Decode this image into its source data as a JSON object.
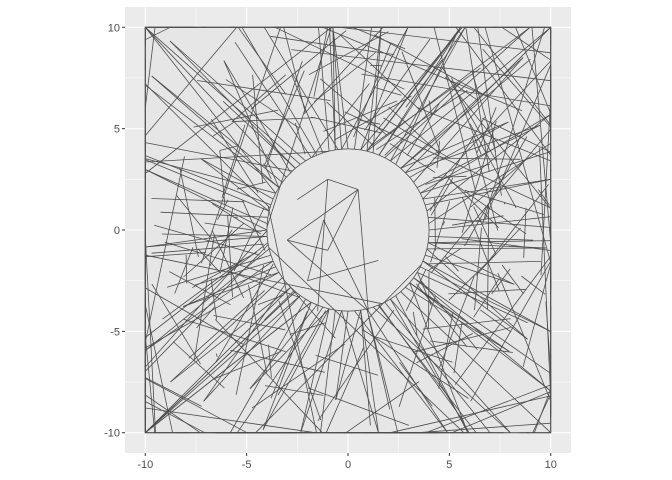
{
  "chart_data": {
    "type": "line",
    "title": "",
    "xlabel": "",
    "ylabel": "",
    "xlim": [
      -11,
      11
    ],
    "ylim": [
      -11,
      11
    ],
    "x_ticks": [
      -10,
      -5,
      0,
      5,
      10
    ],
    "y_ticks": [
      -10,
      -5,
      0,
      5,
      10
    ],
    "x_tick_labels": [
      "-10",
      "-5",
      "0",
      "5",
      "10"
    ],
    "y_tick_labels": [
      "-10",
      "-5",
      "0",
      "5",
      "10"
    ],
    "grid": true,
    "legend": "none",
    "colors": {
      "panel_background": "#ebebeb",
      "grid_major": "#ffffff",
      "line": "#4d4d4d",
      "square_fill": "#e6e6e6"
    },
    "boundary_square": [
      [
        -10,
        -10
      ],
      [
        10,
        -10
      ],
      [
        10,
        10
      ],
      [
        -10,
        10
      ]
    ],
    "inner_circle": {
      "center": [
        0,
        0
      ],
      "radius": 4
    }
  }
}
